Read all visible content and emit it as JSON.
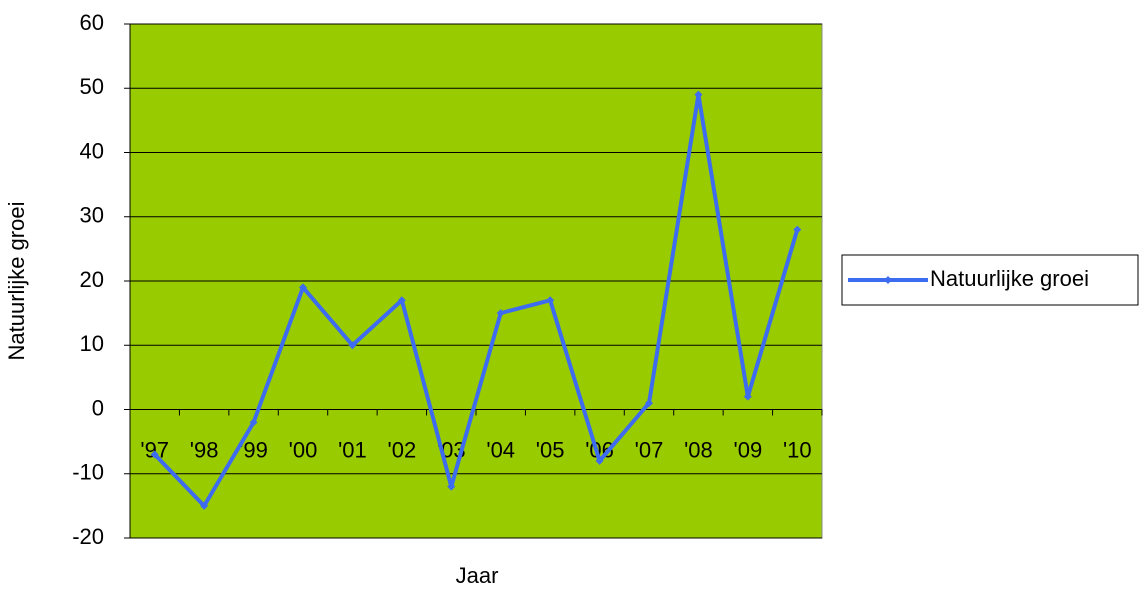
{
  "chart_data": {
    "type": "line",
    "xlabel": "Jaar",
    "ylabel": "Natuurlijke groei",
    "categories": [
      "'97",
      "'98",
      "'99",
      "'00",
      "'01",
      "'02",
      "'03",
      "'04",
      "'05",
      "'06",
      "'07",
      "'08",
      "'09",
      "'10"
    ],
    "series": [
      {
        "name": "Natuurlijke groei",
        "color": "#3d6cf0",
        "values": [
          -7,
          -15,
          -2,
          19,
          10,
          17,
          -12,
          15,
          17,
          -8,
          1,
          49,
          2,
          28
        ]
      }
    ],
    "ylim": [
      -20,
      60
    ],
    "yticks": [
      -20,
      -10,
      0,
      10,
      20,
      30,
      40,
      50,
      60
    ],
    "grid": true,
    "plot_background": "#99cc00",
    "legend": "right"
  }
}
